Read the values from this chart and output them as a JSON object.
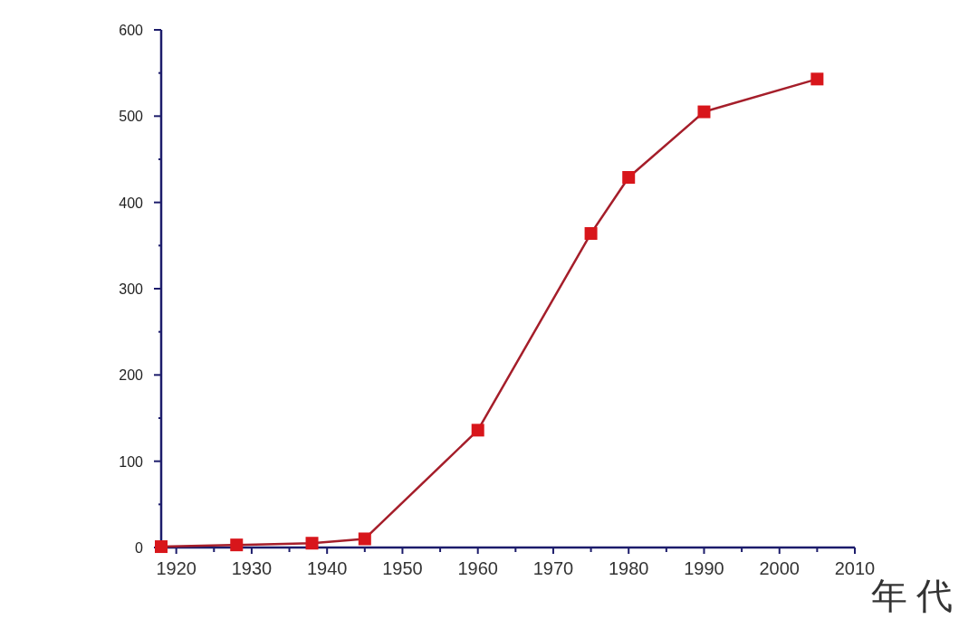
{
  "chart_data": {
    "type": "line",
    "xlabel": "年代",
    "x": [
      1918,
      1928,
      1938,
      1945,
      1960,
      1975,
      1980,
      1990,
      2005
    ],
    "series": [
      {
        "color": "#d8161b",
        "values": [
          1,
          3,
          5,
          10,
          136,
          364,
          429,
          505,
          543
        ]
      }
    ],
    "xlim": [
      1918,
      2010
    ],
    "xticks": [
      1920,
      {
        "value": 1925,
        "label": null
      },
      1930,
      {
        "value": 1935,
        "label": null
      },
      1940,
      {
        "value": 1945,
        "label": null
      },
      1950,
      {
        "value": 1955,
        "label": null
      },
      1960,
      {
        "value": 1965,
        "label": null
      },
      1970,
      {
        "value": 1975,
        "label": null
      },
      1980,
      {
        "value": 1985,
        "label": null
      },
      1990,
      {
        "value": 1995,
        "label": null
      },
      2000,
      {
        "value": 2005,
        "label": null
      },
      2010
    ],
    "ylim": [
      0,
      600
    ],
    "yticks": [
      0,
      {
        "value": 50,
        "label": null
      },
      100,
      {
        "value": 150,
        "label": null
      },
      200,
      {
        "value": 250,
        "label": null
      },
      300,
      {
        "value": 350,
        "label": null
      },
      400,
      {
        "value": 450,
        "label": null
      },
      500,
      {
        "value": 550,
        "label": null
      },
      600
    ],
    "marker": "square",
    "line_style": "solid",
    "grid": false
  }
}
